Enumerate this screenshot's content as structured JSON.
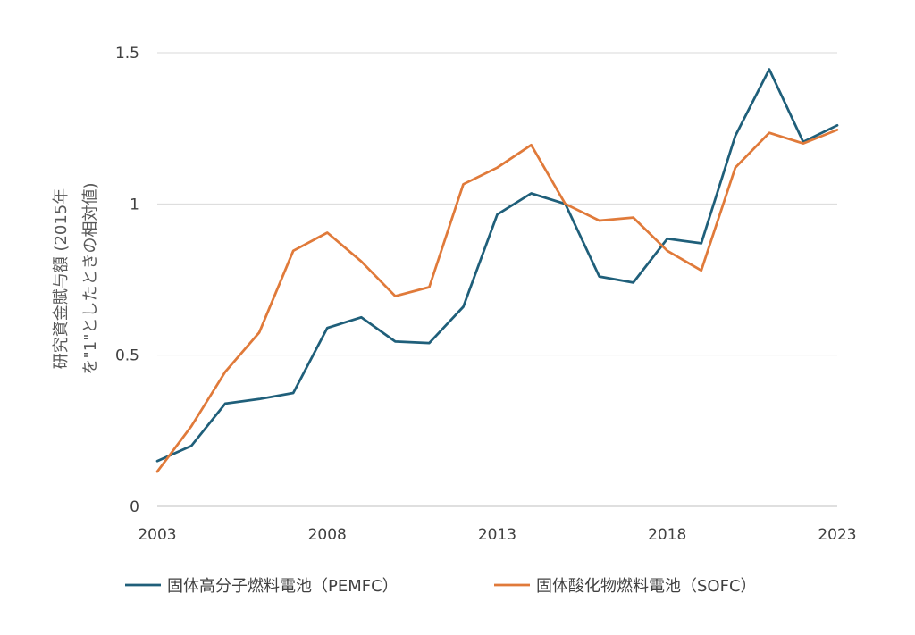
{
  "chart_data": {
    "type": "line",
    "title": "",
    "xlabel": "",
    "ylabel_lines": [
      "研究資金賦与額 (2015年",
      "を\"1\"としたときの相対値)"
    ],
    "x": [
      2003,
      2004,
      2005,
      2006,
      2007,
      2008,
      2009,
      2010,
      2011,
      2012,
      2013,
      2014,
      2015,
      2016,
      2017,
      2018,
      2019,
      2020,
      2021,
      2022,
      2023
    ],
    "x_ticks": [
      2003,
      2008,
      2013,
      2018,
      2023
    ],
    "x_tick_labels": [
      "2003",
      "2008",
      "2013",
      "2018",
      "2023"
    ],
    "y_ticks": [
      0,
      0.5,
      1,
      1.5
    ],
    "y_tick_labels": [
      "0",
      "0.5",
      "1",
      "1.5"
    ],
    "xlim": [
      2003,
      2023
    ],
    "ylim": [
      0,
      1.5
    ],
    "grid": "horizontal",
    "legend_position": "bottom",
    "series": [
      {
        "name": "固体高分子燃料電池（PEMFC）",
        "color": "#1f5f7a",
        "values": [
          0.15,
          0.2,
          0.34,
          0.355,
          0.375,
          0.59,
          0.625,
          0.545,
          0.54,
          0.66,
          0.965,
          1.035,
          1.0,
          0.76,
          0.74,
          0.885,
          0.87,
          1.225,
          1.445,
          1.205,
          1.26
        ]
      },
      {
        "name": "固体酸化物燃料電池（SOFC）",
        "color": "#e07a3a",
        "values": [
          0.115,
          0.265,
          0.445,
          0.575,
          0.845,
          0.905,
          0.81,
          0.695,
          0.725,
          1.065,
          1.12,
          1.195,
          1.0,
          0.945,
          0.955,
          0.845,
          0.78,
          1.12,
          1.235,
          1.2,
          1.245
        ]
      }
    ]
  }
}
